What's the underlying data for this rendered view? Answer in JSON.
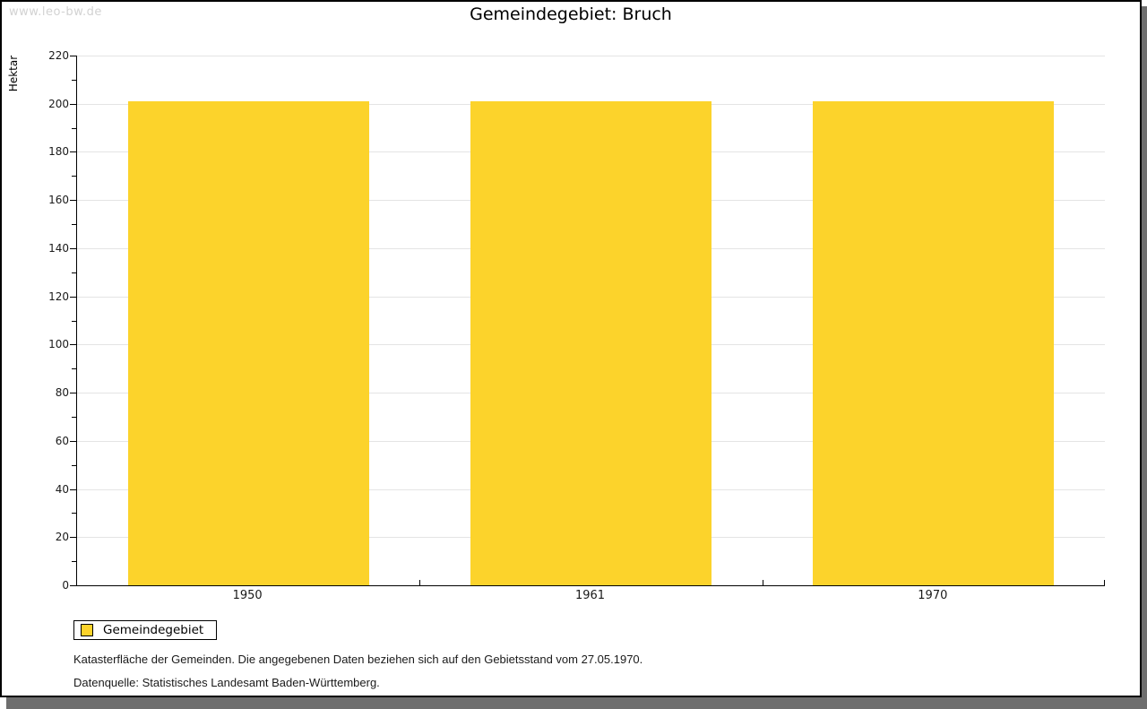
{
  "watermark": "www.leo-bw.de",
  "chart_data": {
    "type": "bar",
    "title": "Gemeindegebiet: Bruch",
    "categories": [
      "1950",
      "1961",
      "1970"
    ],
    "series": [
      {
        "name": "Gemeindegebiet",
        "values": [
          201,
          201,
          201
        ]
      }
    ],
    "xlabel": "",
    "ylabel": "Hektar",
    "ylim": [
      0,
      220
    ],
    "ytick_step": 20,
    "minor_tick_step": 10,
    "grid": true,
    "legend_position": "bottom-left",
    "bar_color": "#fcd32b"
  },
  "legend": {
    "items": [
      {
        "label": "Gemeindegebiet",
        "color": "#fcd32b"
      }
    ]
  },
  "footnotes": [
    "Katasterfläche der Gemeinden. Die angegebenen Daten beziehen sich auf den Gebietsstand vom 27.05.1970.",
    "Datenquelle: Statistisches Landesamt Baden-Württemberg."
  ],
  "colors": {
    "bar": "#fcd32b",
    "gridline": "#e4e4e4",
    "axis": "#000000",
    "shadow": "#6e6e6e",
    "watermark": "#d2d2d2"
  }
}
